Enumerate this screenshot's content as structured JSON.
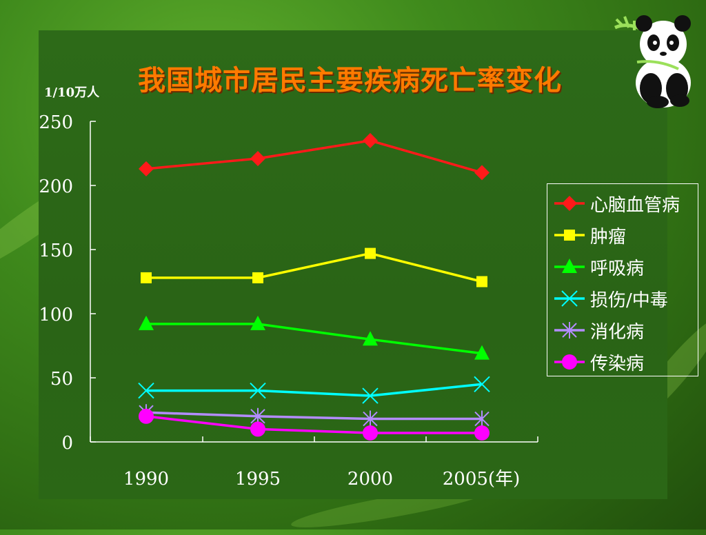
{
  "slide": {
    "title": "我国城市居民主要疾病死亡率变化",
    "unit_label": "1/10万人"
  },
  "chart_data": {
    "type": "line",
    "title": "我国城市居民主要疾病死亡率变化",
    "ylabel": "1/10万人",
    "xlabel": "(年)",
    "categories": [
      "1990",
      "1995",
      "2000",
      "2005"
    ],
    "x_tick_labels": [
      "1990",
      "1995",
      "2000",
      "2005(年)"
    ],
    "ylim": [
      0,
      250
    ],
    "yticks": [
      0,
      50,
      100,
      150,
      200,
      250
    ],
    "legend_position": "right",
    "series": [
      {
        "name": "心脑血管病",
        "values": [
          213,
          221,
          235,
          210
        ],
        "color": "#ff1a1a",
        "marker": "diamond"
      },
      {
        "name": "肿瘤",
        "values": [
          128,
          128,
          147,
          125
        ],
        "color": "#ffff00",
        "marker": "square"
      },
      {
        "name": "呼吸病",
        "values": [
          92,
          92,
          80,
          69
        ],
        "color": "#00ff00",
        "marker": "triangle"
      },
      {
        "name": "损伤/中毒",
        "values": [
          40,
          40,
          36,
          45
        ],
        "color": "#00ffff",
        "marker": "x"
      },
      {
        "name": "消化病",
        "values": [
          23,
          20,
          18,
          18
        ],
        "color": "#b38cff",
        "marker": "star"
      },
      {
        "name": "传染病",
        "values": [
          20,
          10,
          7,
          7
        ],
        "color": "#ff00ff",
        "marker": "circle"
      }
    ]
  }
}
